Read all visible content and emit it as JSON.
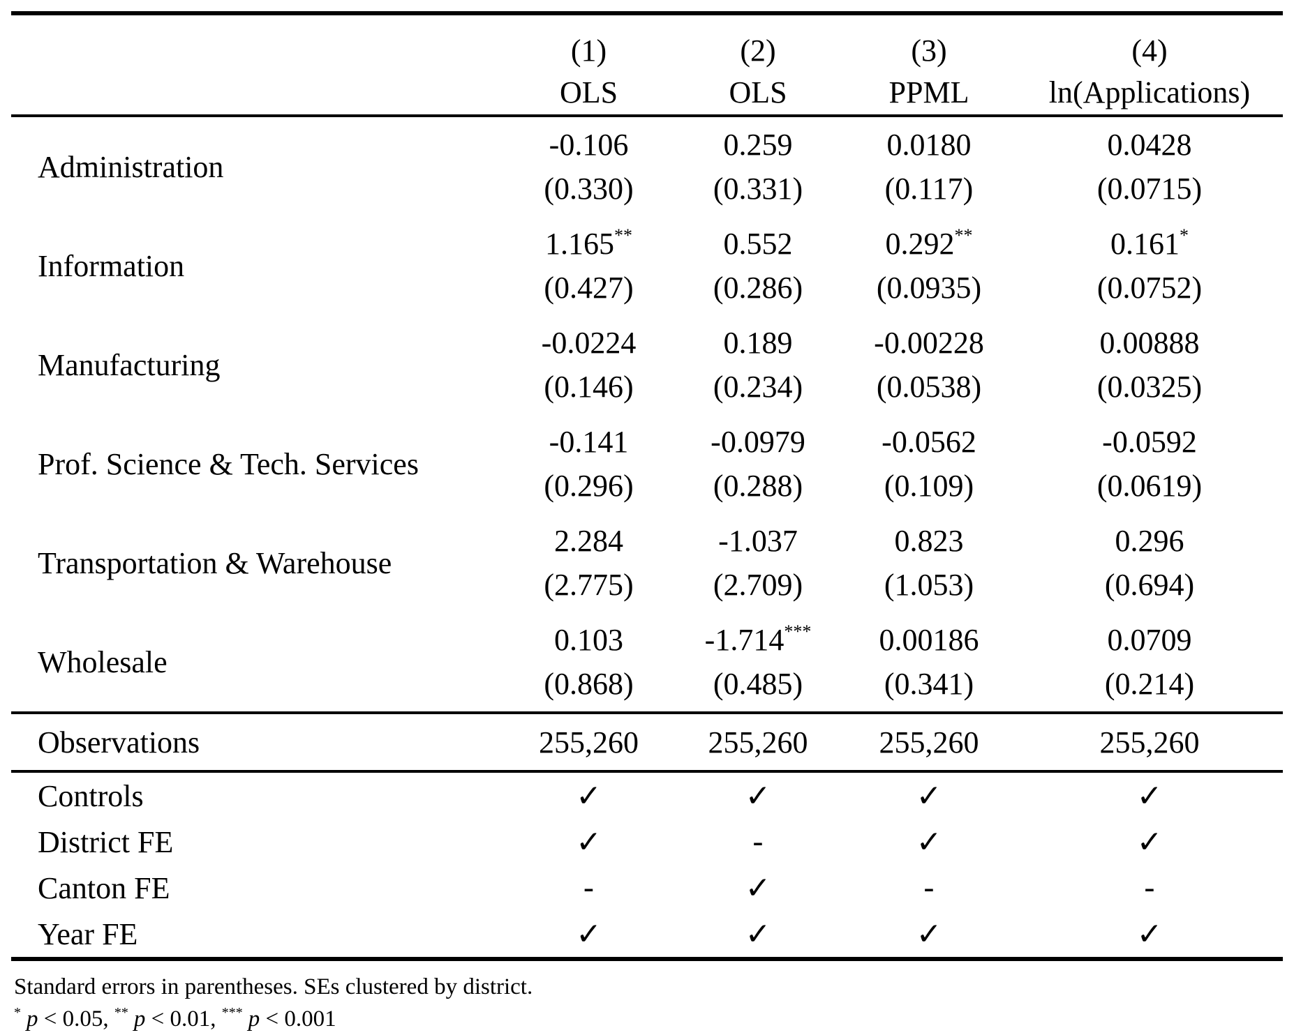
{
  "table": {
    "columns": [
      {
        "number": "(1)",
        "model": "OLS"
      },
      {
        "number": "(2)",
        "model": "OLS"
      },
      {
        "number": "(3)",
        "model": "PPML"
      },
      {
        "number": "(4)",
        "model": "ln(Applications)"
      }
    ],
    "rows": [
      {
        "label": "Administration",
        "coefs": [
          {
            "v": "-0.106",
            "s": ""
          },
          {
            "v": "0.259",
            "s": ""
          },
          {
            "v": "0.0180",
            "s": ""
          },
          {
            "v": "0.0428",
            "s": ""
          }
        ],
        "ses": [
          "(0.330)",
          "(0.331)",
          "(0.117)",
          "(0.0715)"
        ]
      },
      {
        "label": "Information",
        "coefs": [
          {
            "v": "1.165",
            "s": "**"
          },
          {
            "v": "0.552",
            "s": ""
          },
          {
            "v": "0.292",
            "s": "**"
          },
          {
            "v": "0.161",
            "s": "*"
          }
        ],
        "ses": [
          "(0.427)",
          "(0.286)",
          "(0.0935)",
          "(0.0752)"
        ]
      },
      {
        "label": "Manufacturing",
        "coefs": [
          {
            "v": "-0.0224",
            "s": ""
          },
          {
            "v": "0.189",
            "s": ""
          },
          {
            "v": "-0.00228",
            "s": ""
          },
          {
            "v": "0.00888",
            "s": ""
          }
        ],
        "ses": [
          "(0.146)",
          "(0.234)",
          "(0.0538)",
          "(0.0325)"
        ]
      },
      {
        "label": "Prof. Science & Tech. Services",
        "coefs": [
          {
            "v": "-0.141",
            "s": ""
          },
          {
            "v": "-0.0979",
            "s": ""
          },
          {
            "v": "-0.0562",
            "s": ""
          },
          {
            "v": "-0.0592",
            "s": ""
          }
        ],
        "ses": [
          "(0.296)",
          "(0.288)",
          "(0.109)",
          "(0.0619)"
        ]
      },
      {
        "label": "Transportation & Warehouse",
        "coefs": [
          {
            "v": "2.284",
            "s": ""
          },
          {
            "v": "-1.037",
            "s": ""
          },
          {
            "v": "0.823",
            "s": ""
          },
          {
            "v": "0.296",
            "s": ""
          }
        ],
        "ses": [
          "(2.775)",
          "(2.709)",
          "(1.053)",
          "(0.694)"
        ]
      },
      {
        "label": "Wholesale",
        "coefs": [
          {
            "v": "0.103",
            "s": ""
          },
          {
            "v": "-1.714",
            "s": "***"
          },
          {
            "v": "0.00186",
            "s": ""
          },
          {
            "v": "0.0709",
            "s": ""
          }
        ],
        "ses": [
          "(0.868)",
          "(0.485)",
          "(0.341)",
          "(0.214)"
        ]
      }
    ],
    "observations": {
      "label": "Observations",
      "values": [
        "255,260",
        "255,260",
        "255,260",
        "255,260"
      ]
    },
    "fe_rows": [
      {
        "label": "Controls",
        "values": [
          "✓",
          "✓",
          "✓",
          "✓"
        ]
      },
      {
        "label": "District FE",
        "values": [
          "✓",
          "-",
          "✓",
          "✓"
        ]
      },
      {
        "label": "Canton FE",
        "values": [
          "-",
          "✓",
          "-",
          "-"
        ]
      },
      {
        "label": "Year FE",
        "values": [
          "✓",
          "✓",
          "✓",
          "✓"
        ]
      }
    ]
  },
  "notes": {
    "line1": "Standard errors in parentheses. SEs clustered by district.",
    "sig": {
      "s1": "*",
      "p1": "p",
      "c1": " < 0.05, ",
      "s2": "**",
      "p2": "p",
      "c2": " < 0.01, ",
      "s3": "***",
      "p3": "p",
      "c3": " < 0.001"
    }
  },
  "colors": {
    "text": "#000000",
    "background": "#ffffff",
    "rule": "#000000"
  }
}
